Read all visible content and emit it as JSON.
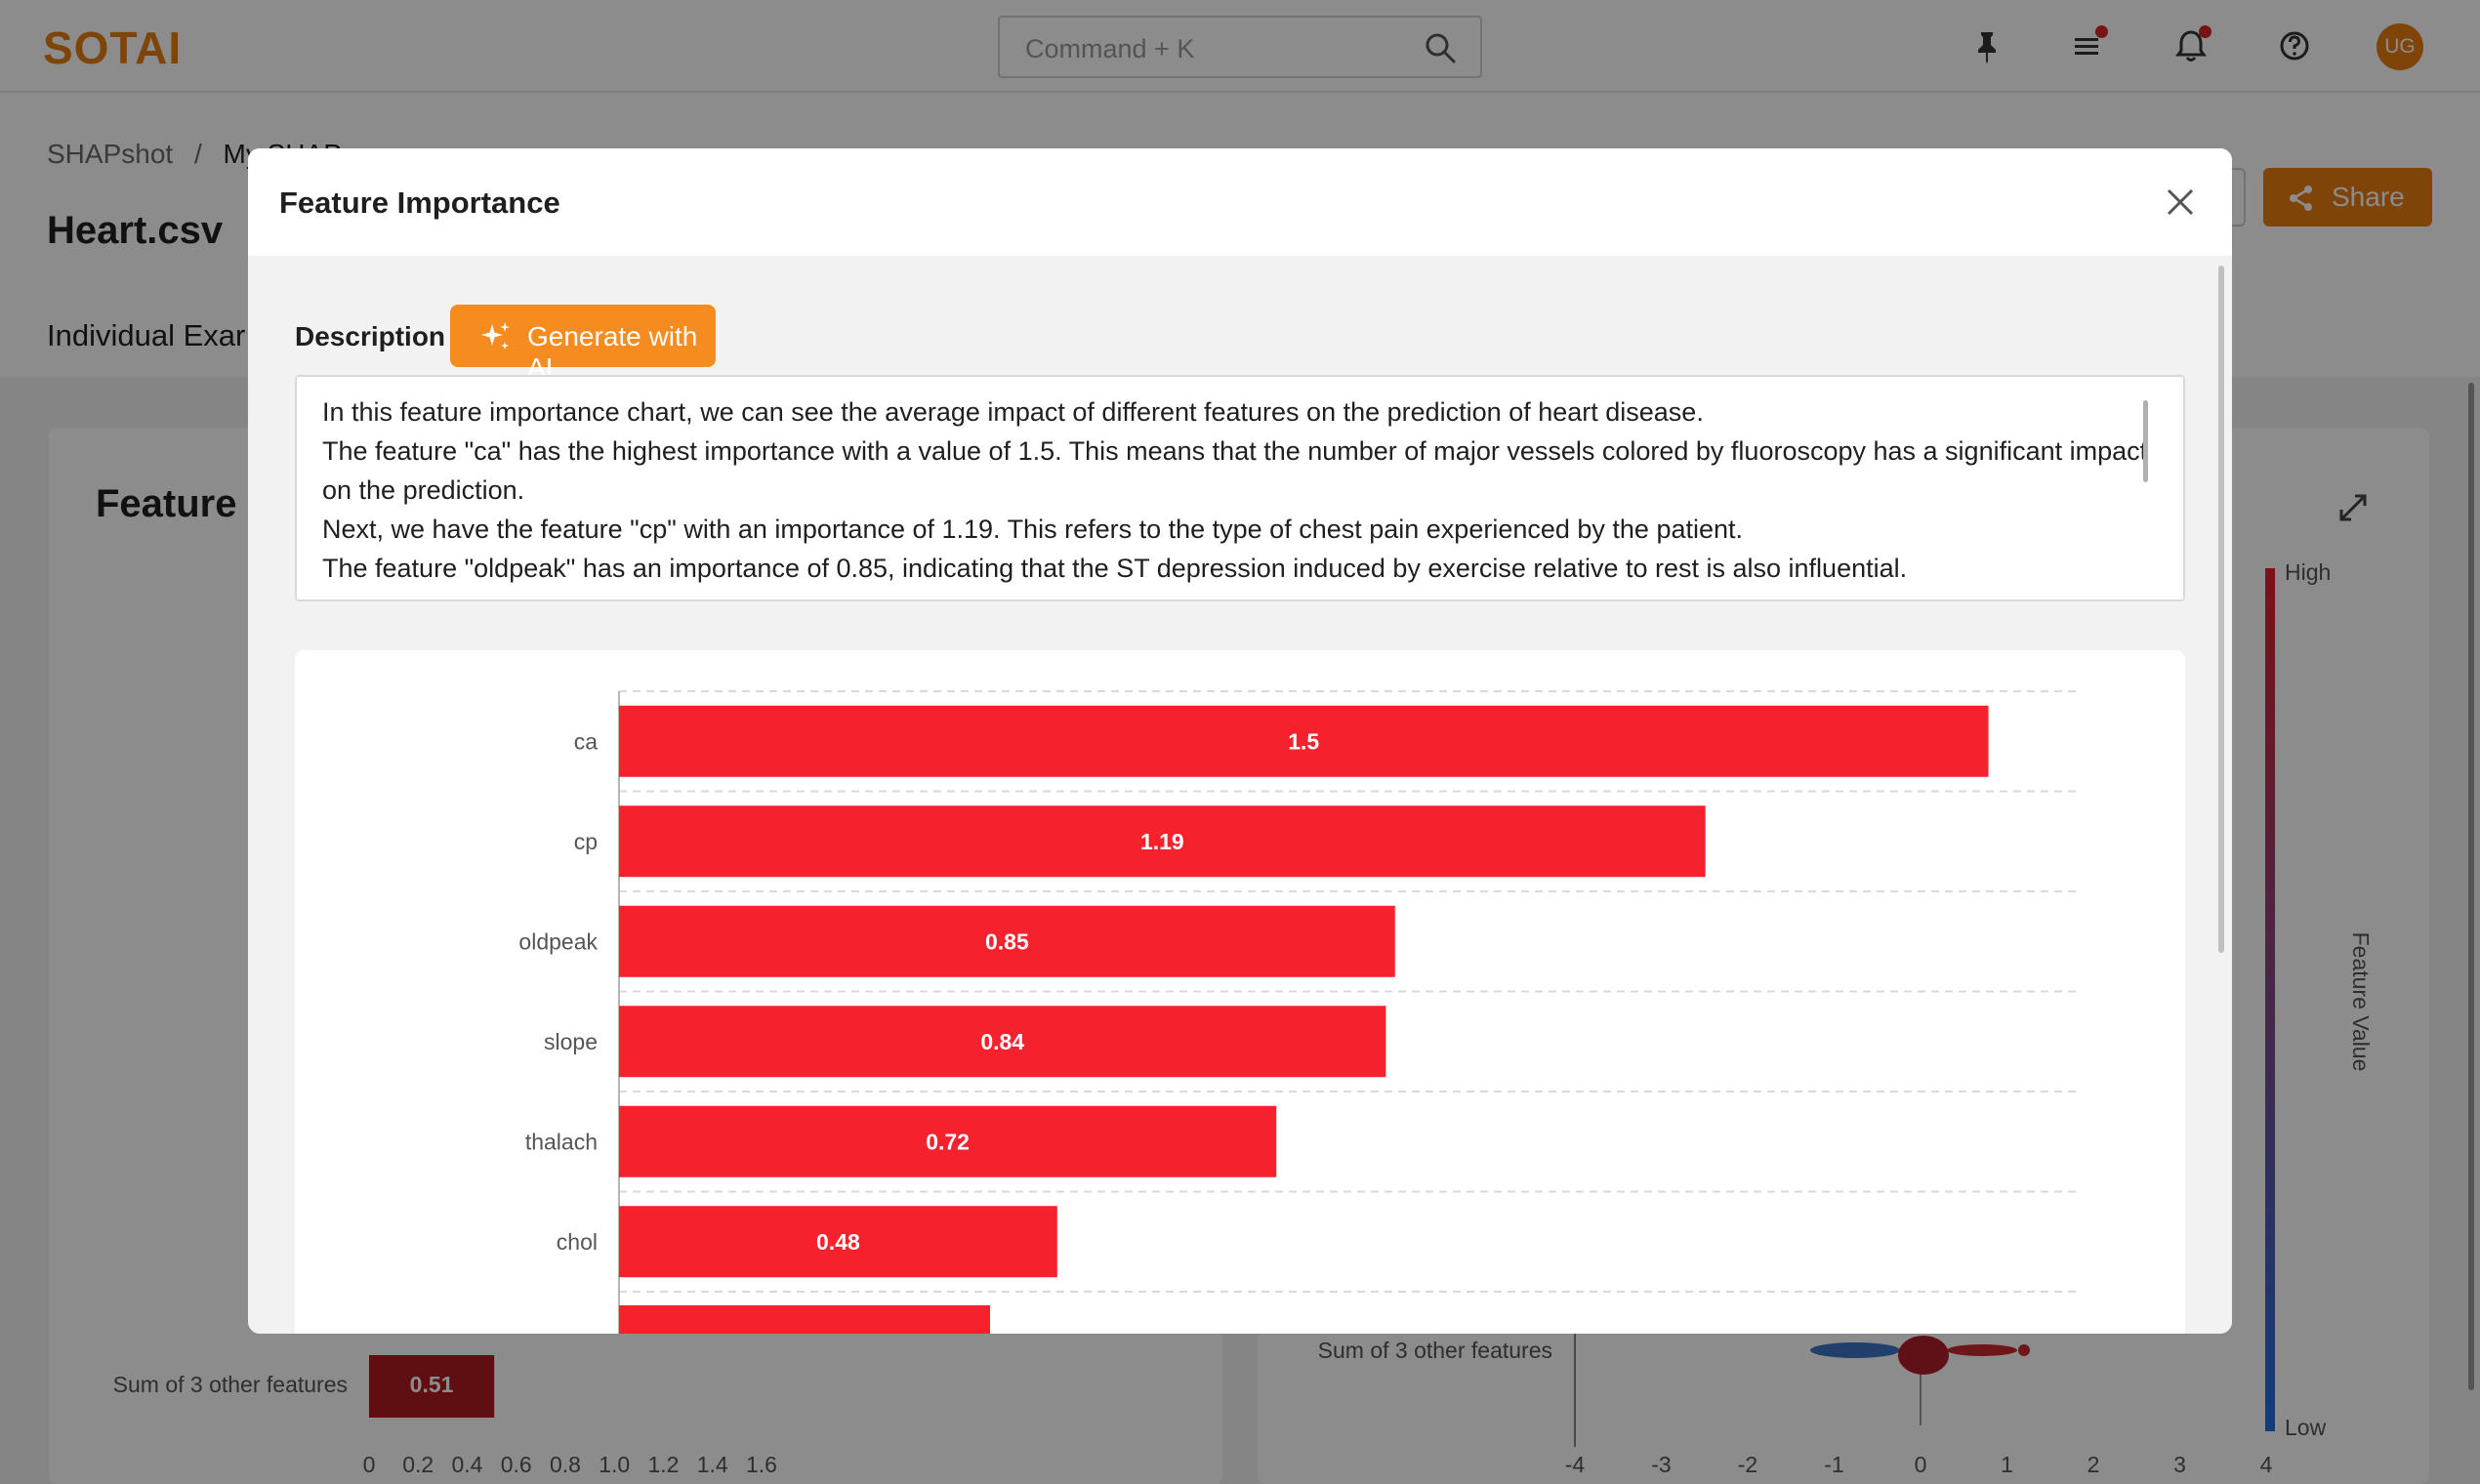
{
  "app": {
    "logo": "SOTAI",
    "search_placeholder": "Command + K",
    "user_initials": "UG",
    "colors": {
      "brand": "#e57c0f",
      "bar": "#f5222d",
      "bar_dark": "#ae1c22",
      "badge": "#d9252a"
    },
    "icons": [
      "pin-icon",
      "list-icon",
      "bell-icon",
      "help-icon",
      "search-icon",
      "share-icon",
      "expand-icon"
    ]
  },
  "page": {
    "breadcrumb_root": "SHAPshot",
    "breadcrumb_sep": "/",
    "breadcrumb_current": "My SHAP",
    "title": "Heart.csv",
    "tab": "Individual Exar",
    "share_label": "Share",
    "card_title": "Feature I"
  },
  "background_left_chart": {
    "row_label": "Sum of 3 other features",
    "row_value_label": "0.51",
    "row_value": 0.51,
    "x_ticks": [
      "0",
      "0.2",
      "0.4",
      "0.6",
      "0.8",
      "1.0",
      "1.2",
      "1.4",
      "1.6"
    ]
  },
  "background_right_chart": {
    "row_label": "Sum of 3 other features",
    "x_ticks": [
      "-4",
      "-3",
      "-2",
      "-1",
      "0",
      "1",
      "2",
      "3",
      "4"
    ],
    "colorbar_high": "High",
    "colorbar_low": "Low",
    "colorbar_title": "Feature Value"
  },
  "modal": {
    "title": "Feature Importance",
    "description_label": "Description",
    "generate_label": "Generate with AI",
    "description_lines": [
      "In this feature importance chart, we can see the average impact of different features on the prediction of heart disease.",
      "The feature \"ca\" has the highest importance with a value of 1.5. This means that the number of major vessels colored by fluoroscopy has a significant impact on the prediction.",
      "Next, we have the feature \"cp\" with an importance of 1.19. This refers to the type of chest pain experienced by the patient.",
      "The feature \"oldpeak\" has an importance of 0.85, indicating that the ST depression induced by exercise relative to rest is also influential."
    ]
  },
  "chart_data": {
    "type": "bar",
    "orientation": "horizontal",
    "categories": [
      "ca",
      "cp",
      "oldpeak",
      "slope",
      "thalach",
      "chol"
    ],
    "values": [
      1.5,
      1.19,
      0.85,
      0.84,
      0.72,
      0.48
    ],
    "value_labels": [
      "1.5",
      "1.19",
      "0.85",
      "0.84",
      "0.72",
      "0.48"
    ],
    "xlim": [
      0,
      1.6
    ],
    "grid": true
  }
}
